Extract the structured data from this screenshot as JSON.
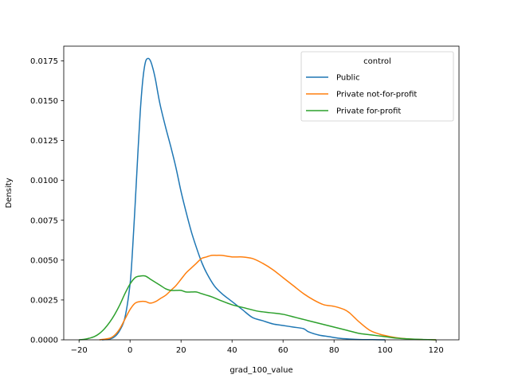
{
  "chart_data": {
    "type": "line",
    "xlabel": "grad_100_value",
    "ylabel": "Density",
    "xlim": [
      -26,
      129
    ],
    "ylim": [
      0,
      0.01842
    ],
    "xticks": [
      -20,
      0,
      20,
      40,
      60,
      80,
      100,
      120
    ],
    "xtick_labels": [
      "−20",
      "0",
      "20",
      "40",
      "60",
      "80",
      "100",
      "120"
    ],
    "yticks": [
      0,
      0.0025,
      0.005,
      0.0075,
      0.01,
      0.0125,
      0.015,
      0.0175
    ],
    "ytick_labels": [
      "0.0000",
      "0.0025",
      "0.0050",
      "0.0075",
      "0.0100",
      "0.0125",
      "0.0150",
      "0.0175"
    ],
    "grid": false,
    "legend": {
      "title": "control",
      "placement": "upper right",
      "entries": [
        "Public",
        "Private not-for-profit",
        "Private for-profit"
      ]
    },
    "colors": {
      "Public": "#1f77b4",
      "Private not-for-profit": "#ff7f0e",
      "Private for-profit": "#2ca02c"
    },
    "series": [
      {
        "name": "Public",
        "x": [
          -11,
          -8,
          -6,
          -4,
          -2,
          0,
          1,
          2,
          3,
          4,
          5,
          6,
          7,
          8,
          9,
          10,
          11,
          12,
          14,
          16,
          18,
          20,
          22,
          24,
          26,
          28,
          30,
          33,
          36,
          40,
          44,
          48,
          52,
          56,
          60,
          64,
          68,
          70,
          74,
          78,
          82,
          86,
          90,
          95,
          100
        ],
        "y": [
          0,
          5e-05,
          0.0002,
          0.0006,
          0.0014,
          0.0035,
          0.0057,
          0.0085,
          0.0115,
          0.0143,
          0.0163,
          0.0174,
          0.01765,
          0.0175,
          0.017,
          0.0163,
          0.0154,
          0.0146,
          0.0133,
          0.0121,
          0.0108,
          0.0093,
          0.008,
          0.0068,
          0.0058,
          0.0049,
          0.0042,
          0.0034,
          0.0029,
          0.0024,
          0.0019,
          0.0014,
          0.0012,
          0.001,
          0.0009,
          0.0008,
          0.0007,
          0.0005,
          0.0003,
          0.0002,
          0.0001,
          5e-05,
          2e-05,
          1e-05,
          0
        ]
      },
      {
        "name": "Private not-for-profit",
        "x": [
          -12,
          -8,
          -6,
          -4,
          -2,
          0,
          2,
          4,
          6,
          8,
          10,
          12,
          14,
          16,
          18,
          20,
          22,
          24,
          26,
          28,
          30,
          32,
          34,
          36,
          40,
          44,
          48,
          52,
          56,
          60,
          64,
          68,
          72,
          76,
          80,
          84,
          86,
          88,
          90,
          94,
          98,
          102,
          106,
          110,
          114,
          118,
          120
        ],
        "y": [
          0,
          0.0001,
          0.0003,
          0.0007,
          0.0013,
          0.0019,
          0.0023,
          0.0024,
          0.0024,
          0.0023,
          0.0024,
          0.0026,
          0.0028,
          0.0031,
          0.0034,
          0.0038,
          0.0042,
          0.0045,
          0.0048,
          0.0051,
          0.0052,
          0.0053,
          0.0053,
          0.0053,
          0.0052,
          0.0052,
          0.0051,
          0.0048,
          0.0044,
          0.0039,
          0.0034,
          0.0029,
          0.0025,
          0.0022,
          0.0021,
          0.0019,
          0.0017,
          0.0014,
          0.0011,
          0.0006,
          0.00035,
          0.0002,
          0.0001,
          5e-05,
          2e-05,
          1e-05,
          0
        ]
      },
      {
        "name": "Private for-profit",
        "x": [
          -20,
          -18,
          -16,
          -14,
          -12,
          -10,
          -8,
          -6,
          -4,
          -2,
          0,
          2,
          4,
          6,
          8,
          10,
          12,
          14,
          16,
          18,
          20,
          22,
          24,
          26,
          28,
          30,
          32,
          35,
          40,
          45,
          50,
          55,
          60,
          65,
          70,
          75,
          80,
          85,
          90,
          95,
          100,
          105,
          110,
          115,
          120
        ],
        "y": [
          0,
          3e-05,
          0.0001,
          0.0002,
          0.0004,
          0.0007,
          0.0011,
          0.0016,
          0.0022,
          0.0029,
          0.0035,
          0.0039,
          0.004,
          0.004,
          0.0038,
          0.0036,
          0.0034,
          0.0032,
          0.0031,
          0.0031,
          0.0031,
          0.003,
          0.003,
          0.003,
          0.0029,
          0.0028,
          0.0027,
          0.0025,
          0.0022,
          0.002,
          0.0018,
          0.0017,
          0.0016,
          0.0014,
          0.0012,
          0.001,
          0.0008,
          0.0006,
          0.0004,
          0.0003,
          0.0002,
          0.0001,
          5e-05,
          2e-05,
          0
        ]
      }
    ]
  }
}
